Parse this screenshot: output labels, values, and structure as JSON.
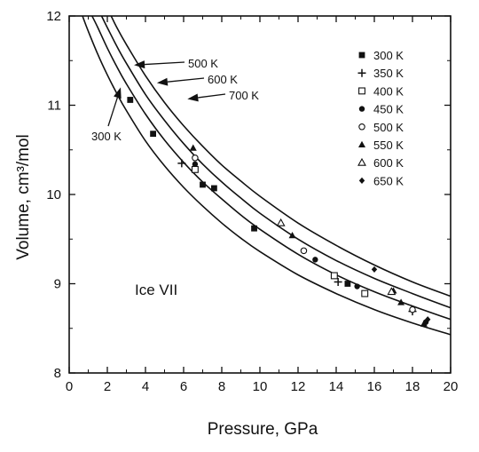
{
  "chart_data": {
    "type": "scatter",
    "title": "",
    "xlabel": "Pressure, GPa",
    "ylabel": "Volume, cm³/mol",
    "xlim": [
      0,
      20
    ],
    "ylim": [
      8,
      12
    ],
    "xticks": [
      "0",
      "2",
      "4",
      "6",
      "8",
      "10",
      "12",
      "14",
      "16",
      "18",
      "20"
    ],
    "yticks": [
      "8",
      "9",
      "10",
      "11",
      "12"
    ],
    "grid": false,
    "legend_position": "top-right",
    "plot_label": "Ice VII",
    "curves": [
      {
        "name": "300 K",
        "x": [
          0.7,
          1,
          1.5,
          2,
          2.5,
          3,
          4,
          5,
          6,
          7,
          8,
          9,
          10,
          12,
          14,
          16,
          18,
          20
        ],
        "y": [
          12.0,
          11.83,
          11.57,
          11.34,
          11.13,
          10.94,
          10.6,
          10.32,
          10.08,
          9.87,
          9.68,
          9.51,
          9.36,
          9.1,
          8.89,
          8.71,
          8.56,
          8.43
        ]
      },
      {
        "name": "500 K",
        "x": [
          1.2,
          1.5,
          2,
          2.5,
          3,
          4,
          5,
          6,
          7,
          8,
          9,
          10,
          12,
          14,
          16,
          18,
          20
        ],
        "y": [
          12.0,
          11.87,
          11.64,
          11.43,
          11.24,
          10.9,
          10.61,
          10.36,
          10.14,
          9.95,
          9.77,
          9.61,
          9.33,
          9.1,
          8.91,
          8.75,
          8.6
        ]
      },
      {
        "name": "600 K",
        "x": [
          1.7,
          2,
          2.5,
          3,
          4,
          5,
          6,
          7,
          8,
          9,
          10,
          12,
          14,
          16,
          18,
          20
        ],
        "y": [
          12.0,
          11.87,
          11.66,
          11.47,
          11.12,
          10.83,
          10.57,
          10.34,
          10.14,
          9.96,
          9.79,
          9.5,
          9.26,
          9.06,
          8.89,
          8.73
        ]
      },
      {
        "name": "700 K",
        "x": [
          2.2,
          2.5,
          3,
          4,
          5,
          6,
          7,
          8,
          9,
          10,
          12,
          14,
          16,
          18,
          20
        ],
        "y": [
          12.0,
          11.87,
          11.68,
          11.33,
          11.03,
          10.77,
          10.54,
          10.33,
          10.15,
          9.98,
          9.68,
          9.43,
          9.21,
          9.02,
          8.86
        ]
      }
    ],
    "curve_labels": [
      {
        "text": "500 K",
        "target": [
          3.4,
          11.45
        ]
      },
      {
        "text": "600 K",
        "target": [
          4.6,
          11.25
        ]
      },
      {
        "text": "700 K",
        "target": [
          6.2,
          11.07
        ]
      },
      {
        "text": "300 K",
        "target": [
          2.7,
          11.2
        ]
      }
    ],
    "series": [
      {
        "name": "300 K",
        "marker": "filled-square",
        "x": [
          3.2,
          4.4,
          7.0,
          7.6,
          9.7,
          14.6
        ],
        "y": [
          11.06,
          10.68,
          10.11,
          10.07,
          9.62,
          9.0
        ]
      },
      {
        "name": "350 K",
        "marker": "plus",
        "x": [
          5.9,
          14.1,
          18.0
        ],
        "y": [
          10.35,
          9.02,
          8.69
        ]
      },
      {
        "name": "400 K",
        "marker": "open-square",
        "x": [
          6.6,
          13.9,
          15.5
        ],
        "y": [
          10.28,
          9.09,
          8.89
        ]
      },
      {
        "name": "450 K",
        "marker": "filled-circle",
        "x": [
          6.6,
          12.9,
          15.1,
          18.7
        ],
        "y": [
          10.34,
          9.27,
          8.97,
          8.57
        ]
      },
      {
        "name": "500 K",
        "marker": "open-circle",
        "x": [
          6.6,
          12.3,
          18.0
        ],
        "y": [
          10.41,
          9.37,
          8.71
        ]
      },
      {
        "name": "550 K",
        "marker": "filled-triangle",
        "x": [
          6.5,
          11.7,
          17.0,
          17.4,
          18.6
        ],
        "y": [
          10.52,
          9.54,
          8.92,
          8.79,
          8.55
        ]
      },
      {
        "name": "600 K",
        "marker": "open-triangle",
        "x": [
          11.1,
          16.9
        ],
        "y": [
          9.68,
          8.91
        ]
      },
      {
        "name": "650 K",
        "marker": "filled-diamond",
        "x": [
          16.0,
          18.8
        ],
        "y": [
          9.16,
          8.6
        ]
      }
    ]
  }
}
